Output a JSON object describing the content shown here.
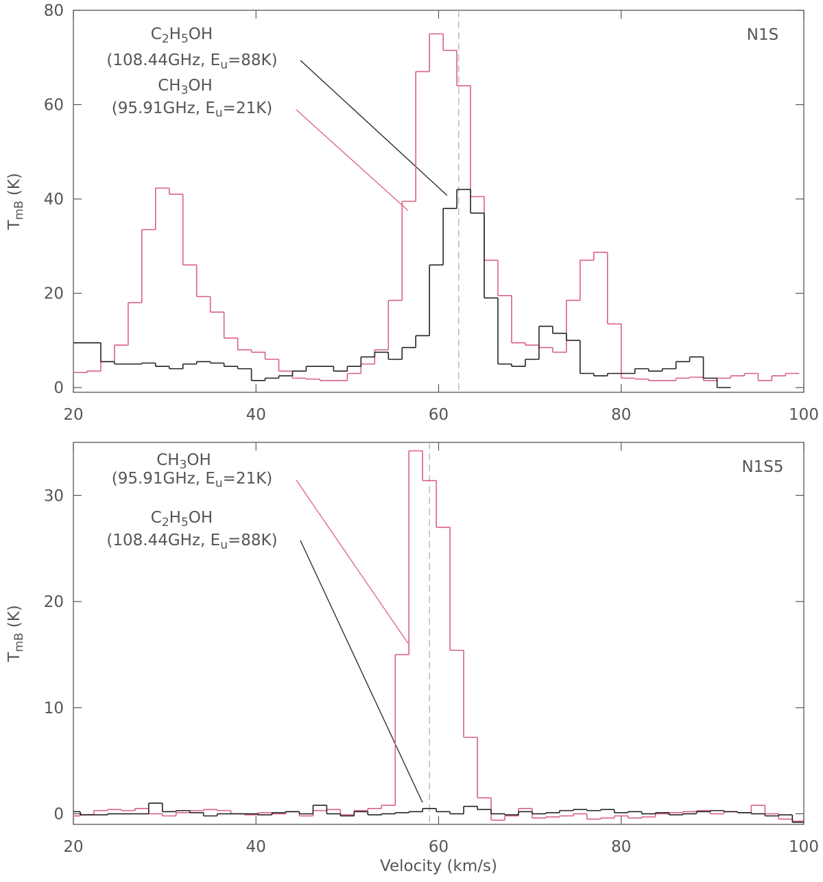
{
  "chart_data": [
    {
      "type": "step",
      "title": "N1S",
      "xlabel": null,
      "ylabel": [
        "T",
        "mB",
        " (K)"
      ],
      "xlim": [
        20,
        100
      ],
      "ylim": [
        -1,
        80
      ],
      "xticks": [
        20,
        40,
        60,
        80,
        100
      ],
      "yticks": [
        0,
        20,
        40,
        60,
        80
      ],
      "vline": 62.2,
      "x": [
        20.75,
        22.25,
        23.75,
        25.25,
        26.75,
        28.25,
        29.75,
        31.25,
        32.75,
        34.25,
        35.75,
        37.25,
        38.75,
        40.25,
        41.75,
        43.25,
        44.75,
        46.25,
        47.75,
        49.25,
        50.75,
        52.25,
        53.75,
        55.25,
        56.75,
        58.25,
        59.75,
        61.25,
        62.75,
        64.25,
        65.75,
        67.25,
        68.75,
        70.25,
        71.75,
        73.25,
        74.75,
        76.25,
        77.75,
        79.25,
        80.75,
        82.25,
        83.75,
        85.25,
        86.75,
        88.25,
        89.75,
        91.25,
        92.75,
        94.25,
        95.75,
        97.25,
        98.75
      ],
      "series": [
        {
          "name": [
            "CH",
            "3",
            "OH"
          ],
          "color": "#d9607f",
          "values": [
            3.2,
            3.5,
            5.5,
            9,
            18,
            33.5,
            42.3,
            41,
            26,
            19.3,
            16,
            10.5,
            8,
            7.5,
            6,
            3.5,
            2,
            1.8,
            1.5,
            1.5,
            3,
            5,
            8,
            18.5,
            39.5,
            67,
            75,
            71.5,
            64,
            40.5,
            27,
            19.5,
            9.5,
            9,
            8.5,
            7.5,
            18.5,
            27,
            28.7,
            13.5,
            2,
            1.8,
            1.5,
            1.5,
            2,
            2.2,
            1.5,
            2,
            2.5,
            3,
            1.5,
            2.5,
            3
          ]
        },
        {
          "name": [
            "C",
            "2",
            "H",
            "5",
            "OH"
          ],
          "color": "#222222",
          "values": [
            9.5,
            9.5,
            5.5,
            5,
            5,
            5.2,
            4.5,
            4,
            5,
            5.5,
            5.2,
            4.5,
            4,
            1.5,
            2,
            2.5,
            3.5,
            4.5,
            4.5,
            3.5,
            4.5,
            6.5,
            7.5,
            6,
            8.5,
            11,
            26,
            38,
            42,
            37,
            19,
            5,
            4.5,
            6,
            13,
            11.5,
            10,
            3,
            2.5,
            3,
            3,
            4,
            3.5,
            4,
            5.5,
            6.5,
            2,
            0,
            null,
            null,
            null,
            null,
            null
          ]
        }
      ],
      "annotations": [
        [
          "(95.91GHz, E",
          "u",
          "=21K)"
        ],
        [
          "(108.44GHz, E",
          "u",
          "=88K)"
        ]
      ]
    },
    {
      "type": "step",
      "title": "N1S5",
      "xlabel": "Velocity (km/s)",
      "ylabel": [
        "T",
        "mB",
        " (K)"
      ],
      "xlim": [
        20,
        100
      ],
      "ylim": [
        -1,
        35
      ],
      "xticks": [
        20,
        40,
        60,
        80,
        100
      ],
      "yticks": [
        0,
        10,
        20,
        30
      ],
      "vline": 59,
      "x": [
        20,
        21.5,
        23,
        24.5,
        26,
        27.5,
        29,
        30.5,
        32,
        33.5,
        35,
        36.5,
        38,
        39.5,
        41,
        42.5,
        44,
        45.5,
        47,
        48.5,
        50,
        51.5,
        53,
        54.5,
        56,
        57.5,
        59,
        60.5,
        62,
        63.5,
        65,
        66.5,
        68,
        69.5,
        71,
        72.5,
        74,
        75.5,
        77,
        78.5,
        80,
        81.5,
        83,
        84.5,
        86,
        87.5,
        89,
        90.5,
        92,
        93.5,
        95,
        96.5,
        98,
        99.5
      ],
      "series": [
        {
          "name": [
            "CH",
            "3",
            "OH"
          ],
          "color": "#d9607f",
          "values": [
            -0.2,
            -0.1,
            0.3,
            0.4,
            0.3,
            0.5,
            0,
            -0.2,
            0.1,
            0.3,
            0.4,
            0.3,
            0,
            -0.1,
            0.1,
            0,
            0.2,
            -0.2,
            0.3,
            0.4,
            -0.1,
            0.3,
            0.5,
            0.8,
            15,
            34.2,
            31.4,
            27,
            15.4,
            7.2,
            1.5,
            -0.6,
            -0.2,
            0.5,
            -0.4,
            -0.3,
            -0.2,
            0,
            -0.5,
            -0.4,
            -0.2,
            -0.4,
            -0.3,
            0,
            0.1,
            0.2,
            0.3,
            0,
            0.2,
            0.1,
            0.8,
            0,
            -0.5,
            -0.7
          ]
        },
        {
          "name": [
            "C",
            "2",
            "H",
            "5",
            "OH"
          ],
          "color": "#222222",
          "values": [
            0.2,
            -0.1,
            -0.1,
            0,
            0,
            0,
            1,
            0.2,
            0.3,
            0.1,
            -0.2,
            0,
            0,
            0,
            -0.1,
            0.1,
            0.2,
            0,
            0.8,
            0,
            -0.2,
            0.2,
            -0.1,
            0,
            0.1,
            0.2,
            0.5,
            0.2,
            0,
            0.7,
            0.4,
            0,
            -0.1,
            0.2,
            0,
            0.1,
            0.3,
            0.4,
            0.3,
            0.4,
            0.1,
            0.2,
            0,
            0.1,
            -0.1,
            0,
            0.2,
            0.3,
            0.2,
            0.1,
            0,
            -0.2,
            -0.1,
            -0.8
          ]
        }
      ],
      "annotations": [
        [
          "(95.91GHz, E",
          "u",
          "=21K)"
        ],
        [
          "(108.44GHz, E",
          "u",
          "=88K)"
        ]
      ]
    }
  ]
}
